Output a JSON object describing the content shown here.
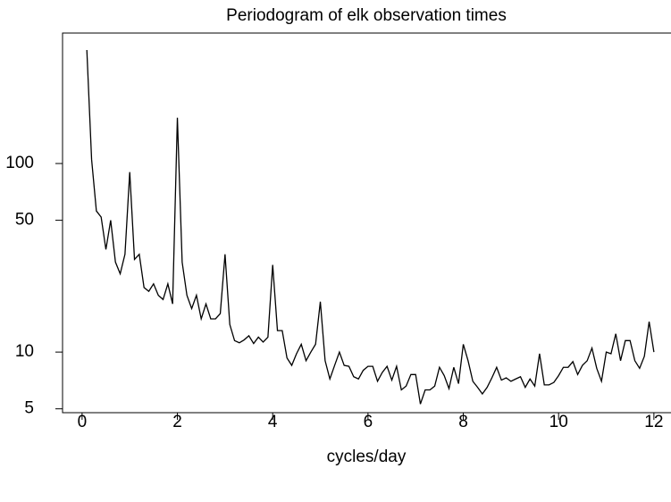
{
  "chart_data": {
    "type": "line",
    "title": "Periodogram of elk observation times",
    "xlabel": "cycles/day",
    "x": [
      0.1,
      0.2,
      0.3,
      0.4,
      0.5,
      0.6,
      0.7,
      0.8,
      0.9,
      1.0,
      1.1,
      1.2,
      1.3,
      1.4,
      1.5,
      1.6,
      1.7,
      1.8,
      1.9,
      2.0,
      2.1,
      2.2,
      2.3,
      2.4,
      2.5,
      2.6,
      2.7,
      2.8,
      2.9,
      3.0,
      3.1,
      3.2,
      3.3,
      3.4,
      3.5,
      3.6,
      3.7,
      3.8,
      3.9,
      4.0,
      4.1,
      4.2,
      4.3,
      4.4,
      4.5,
      4.6,
      4.7,
      4.8,
      4.9,
      5.0,
      5.1,
      5.2,
      5.3,
      5.4,
      5.5,
      5.6,
      5.7,
      5.8,
      5.9,
      6.0,
      6.1,
      6.2,
      6.3,
      6.4,
      6.5,
      6.6,
      6.7,
      6.8,
      6.9,
      7.0,
      7.1,
      7.2,
      7.3,
      7.4,
      7.5,
      7.6,
      7.7,
      7.8,
      7.9,
      8.0,
      8.1,
      8.2,
      8.3,
      8.4,
      8.5,
      8.6,
      8.7,
      8.8,
      8.9,
      9.0,
      9.1,
      9.2,
      9.3,
      9.4,
      9.5,
      9.6,
      9.7,
      9.8,
      9.9,
      10.0,
      10.1,
      10.2,
      10.3,
      10.4,
      10.5,
      10.6,
      10.7,
      10.8,
      10.9,
      11.0,
      11.1,
      11.2,
      11.3,
      11.4,
      11.5,
      11.6,
      11.7,
      11.8,
      11.9,
      12.0
    ],
    "series": [
      {
        "color": "#000000",
        "values": [
          400,
          105,
          56,
          52,
          35,
          50,
          30,
          26,
          33,
          90,
          31,
          33,
          22,
          21,
          23,
          20,
          19,
          23,
          18,
          175,
          30,
          20,
          17,
          20,
          15,
          18,
          15,
          15,
          16,
          33,
          14,
          11.5,
          11.2,
          11.6,
          12.2,
          11.1,
          12,
          11.3,
          12,
          29,
          13,
          13,
          9.3,
          8.5,
          9.8,
          11,
          9,
          10,
          11,
          18.5,
          9,
          7.2,
          8.5,
          10,
          8.5,
          8.4,
          7.4,
          7.2,
          8,
          8.4,
          8.4,
          7,
          7.8,
          8.4,
          7.1,
          8.4,
          6.3,
          6.6,
          7.6,
          7.6,
          5.3,
          6.3,
          6.3,
          6.6,
          8.3,
          7.5,
          6.4,
          8.3,
          6.8,
          11,
          9,
          7,
          6.5,
          6,
          6.5,
          7.3,
          8.3,
          7.1,
          7.3,
          7,
          7.2,
          7.4,
          6.5,
          7.2,
          6.6,
          9.8,
          6.7,
          6.7,
          6.9,
          7.5,
          8.3,
          8.3,
          8.9,
          7.6,
          8.5,
          9,
          10.5,
          8.2,
          7,
          10,
          9.8,
          12.5,
          9,
          11.5,
          11.5,
          9,
          8.2,
          9.5,
          14.5,
          10
        ]
      }
    ],
    "xlim": [
      -0.41,
      12.34
    ],
    "ylim": [
      4.77,
      492
    ],
    "xticks": [
      0,
      2,
      4,
      6,
      8,
      10,
      12
    ],
    "yticks": [
      5,
      10,
      50,
      100
    ],
    "log_y": true
  }
}
